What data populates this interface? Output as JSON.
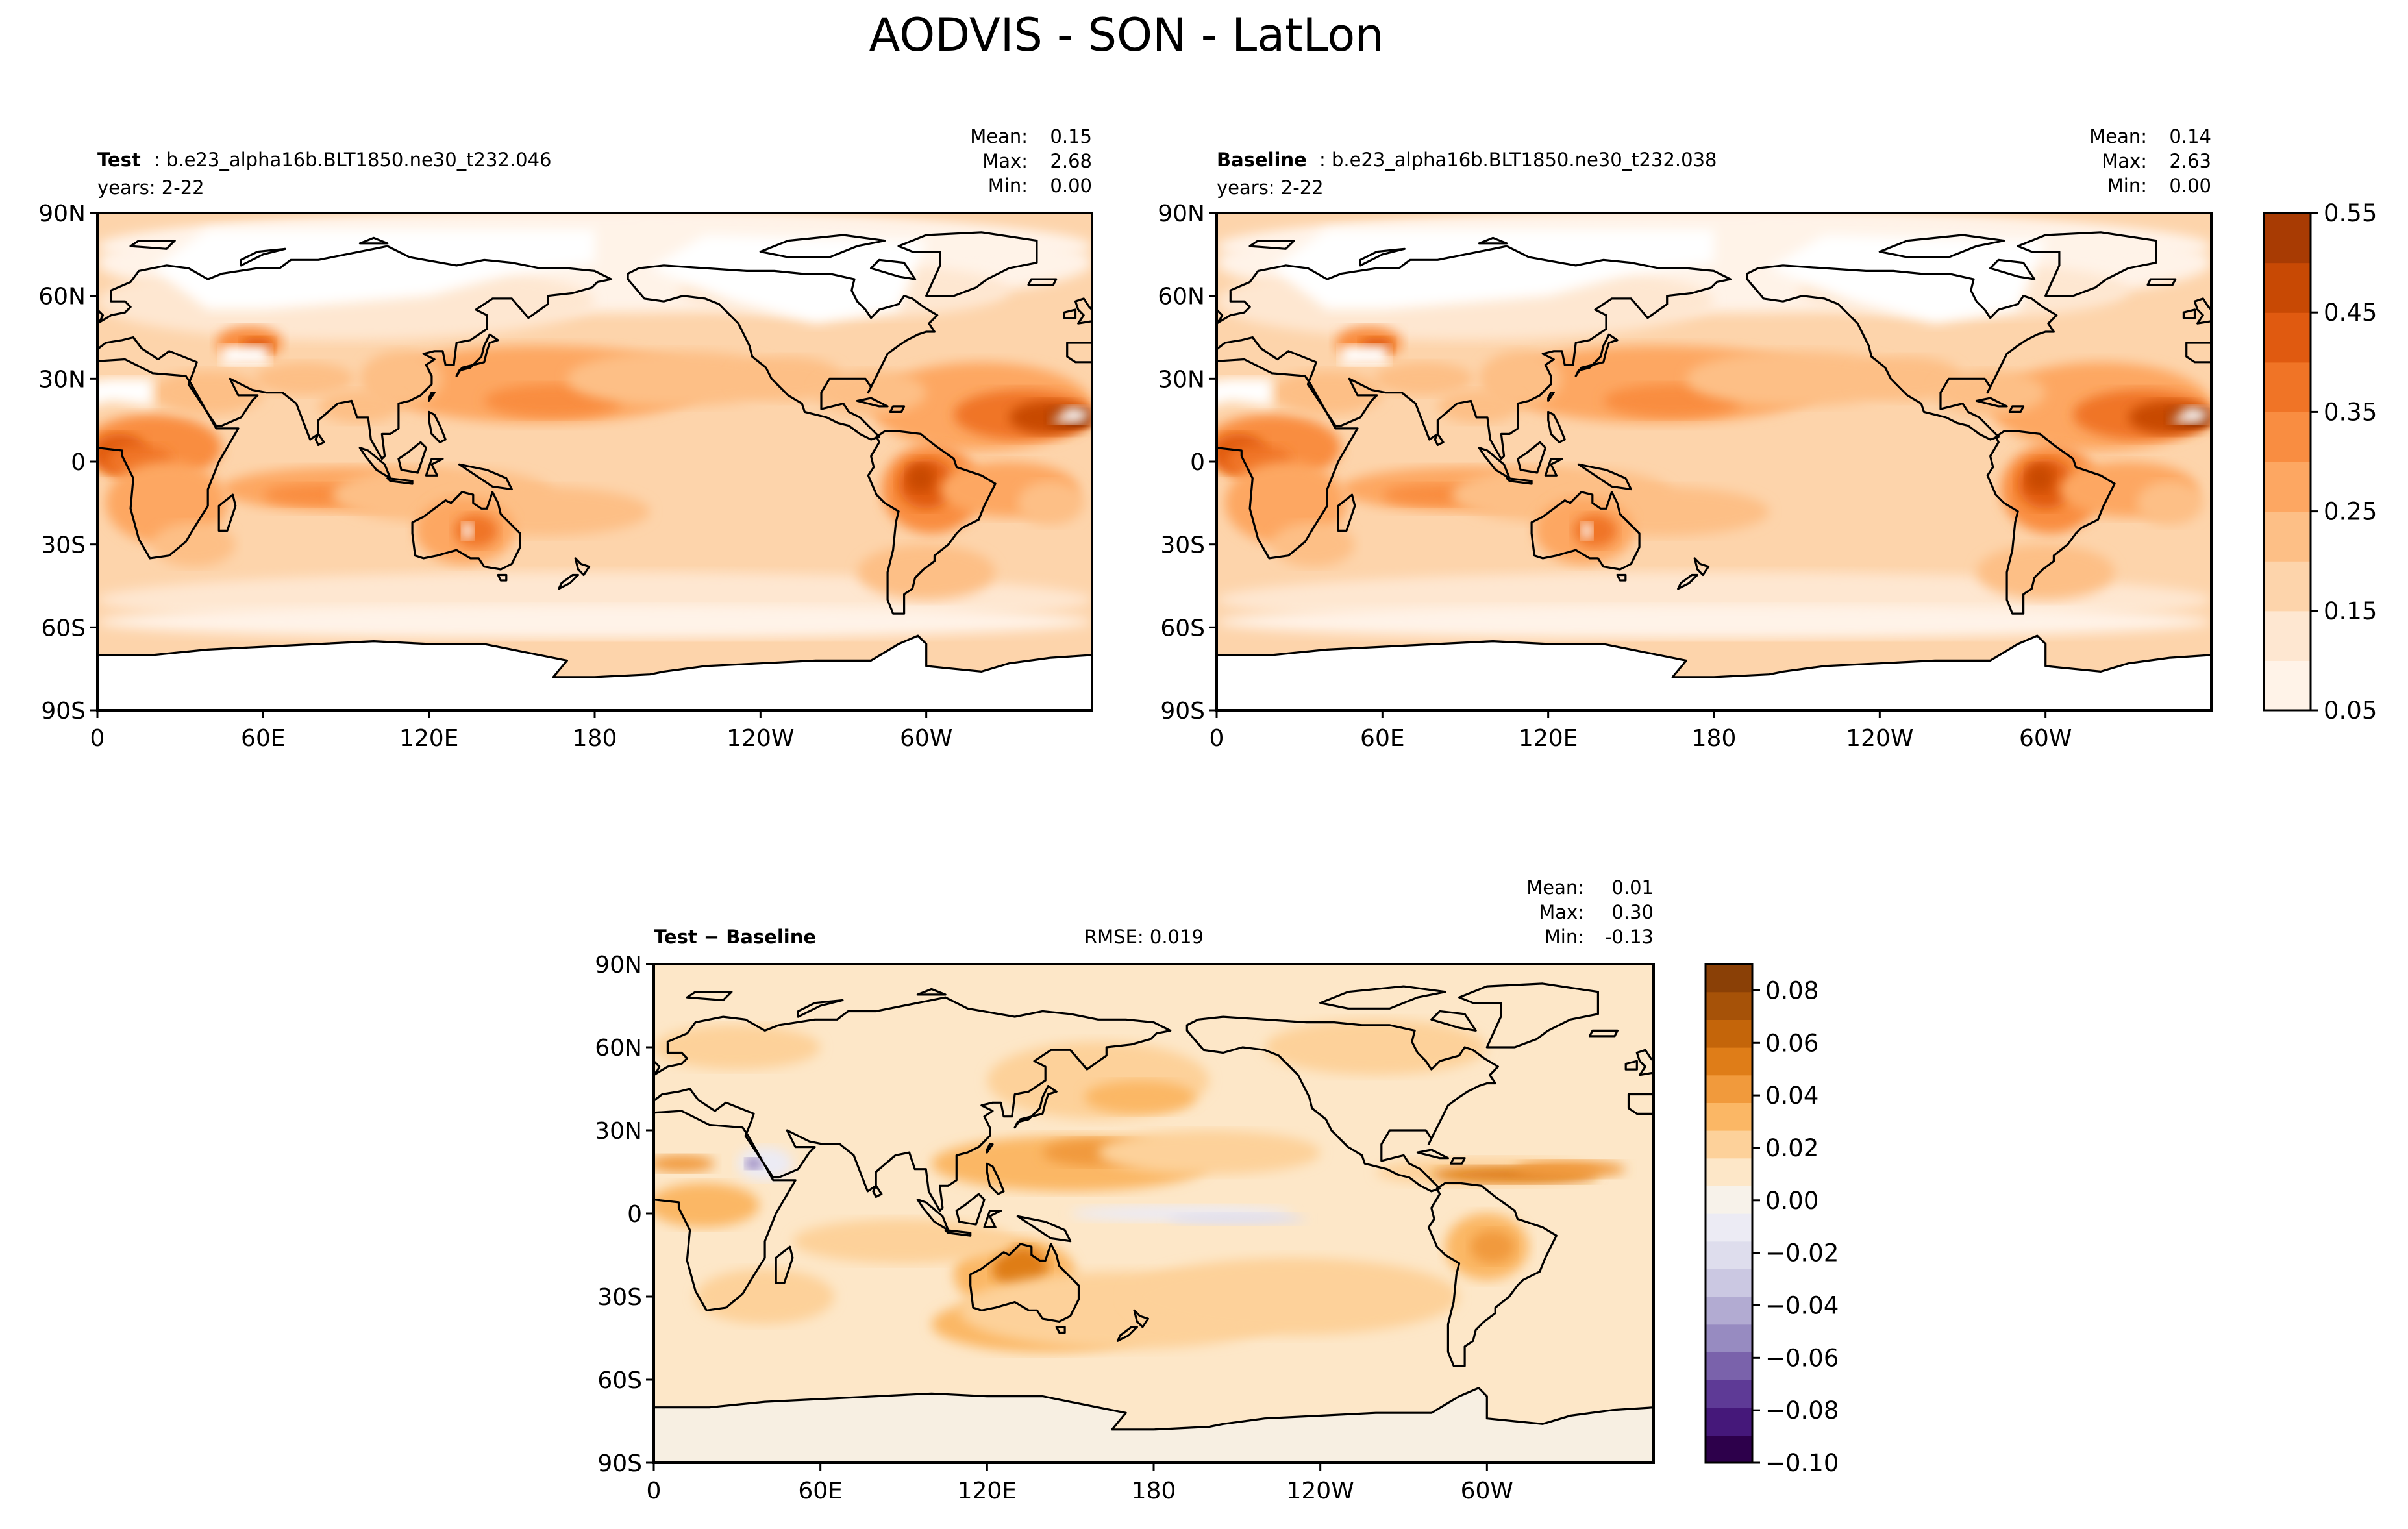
{
  "figure": {
    "title": "AODVIS - SON - LatLon"
  },
  "colors": {
    "seq": [
      "#fff3e8",
      "#fee7d1",
      "#fdd4ab",
      "#fdbf86",
      "#fda762",
      "#f98d41",
      "#f07426",
      "#e05a10",
      "#c84904",
      "#a83b03",
      "#8c2d04"
    ],
    "div": [
      "#2d004b",
      "#45187a",
      "#5e3a96",
      "#7a62ab",
      "#978bc1",
      "#b2abd2",
      "#cbc8e2",
      "#dedded",
      "#ecebf4",
      "#f7f2ea",
      "#fde7c8",
      "#fdd19a",
      "#fbb765",
      "#f19a3c",
      "#df7d18",
      "#c4650a",
      "#a65208",
      "#8a4006"
    ],
    "land_test": "#ffffff",
    "land_diff": "#f7efe2"
  },
  "chart_data": [
    {
      "type": "heatmap",
      "panel": "test",
      "label_bold": "Test",
      "label_rest": ": b.e23_alpha16b.BLT1850.ne30_t232.046",
      "years": "years: 2-22",
      "stats": [
        [
          "Mean:",
          "0.15"
        ],
        [
          "Max:",
          "2.68"
        ],
        [
          "Min:",
          "0.00"
        ]
      ],
      "yticks": [
        "90N",
        "60N",
        "30N",
        "0",
        "30S",
        "60S",
        "90S"
      ],
      "xticks": [
        "0",
        "60E",
        "120E",
        "180",
        "120W",
        "60W"
      ],
      "ylim": [
        -90,
        90
      ],
      "xlim": [
        0,
        360
      ]
    },
    {
      "type": "heatmap",
      "panel": "baseline",
      "label_bold": "Baseline",
      "label_rest": ": b.e23_alpha16b.BLT1850.ne30_t232.038",
      "years": "years: 2-22",
      "stats": [
        [
          "Mean:",
          "0.14"
        ],
        [
          "Max:",
          "2.63"
        ],
        [
          "Min:",
          "0.00"
        ]
      ],
      "yticks": [
        "90N",
        "60N",
        "30N",
        "0",
        "30S",
        "60S",
        "90S"
      ],
      "xticks": [
        "0",
        "60E",
        "120E",
        "180",
        "120W",
        "60W"
      ],
      "ylim": [
        -90,
        90
      ],
      "xlim": [
        0,
        360
      ]
    },
    {
      "type": "heatmap",
      "panel": "diff",
      "label_bold": "Test − Baseline",
      "rmse": "RMSE: 0.019",
      "stats": [
        [
          "Mean:",
          "0.01"
        ],
        [
          "Max:",
          "0.30"
        ],
        [
          "Min:",
          "-0.13"
        ]
      ],
      "yticks": [
        "90N",
        "60N",
        "30N",
        "0",
        "30S",
        "60S",
        "90S"
      ],
      "xticks": [
        "0",
        "60E",
        "120E",
        "180",
        "120W",
        "60W"
      ],
      "ylim": [
        -90,
        90
      ],
      "xlim": [
        0,
        360
      ]
    }
  ],
  "colorbars": {
    "top": {
      "ticks": [
        "0.55",
        "0.45",
        "0.35",
        "0.25",
        "0.15",
        "0.05"
      ],
      "range": [
        0.05,
        0.55
      ]
    },
    "bottom": {
      "ticks": [
        "0.08",
        "0.06",
        "0.04",
        "0.02",
        "0.00",
        "−0.02",
        "−0.04",
        "−0.06",
        "−0.08",
        "−0.10"
      ],
      "range": [
        -0.1,
        0.09
      ]
    }
  }
}
